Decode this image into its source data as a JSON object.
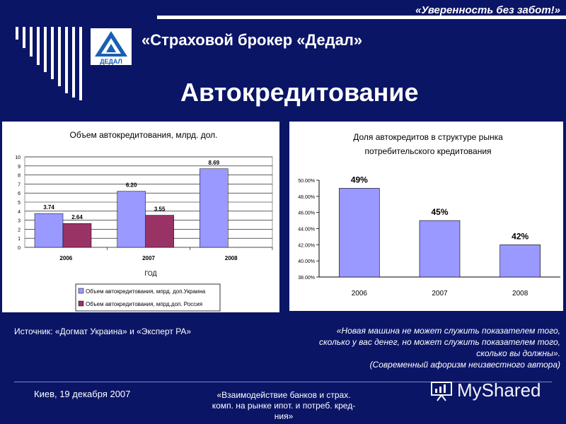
{
  "header": {
    "tagline": "«Уверенность без забот!»",
    "brand": "«Страховой брокер «Дедал»",
    "logo_text": "ДЕДАЛ"
  },
  "title": "Автокредитование",
  "chart_data": [
    {
      "type": "bar",
      "title": "Объем автокредитования, млрд. дол.",
      "categories": [
        "2006",
        "2007",
        "2008"
      ],
      "xlabel": "ГОД",
      "ylim": [
        0,
        10
      ],
      "yticks": [
        "0",
        "1",
        "2",
        "3",
        "4",
        "5",
        "6",
        "7",
        "8",
        "9",
        "10"
      ],
      "series": [
        {
          "name": "Объем автокредитования, мпрд. доп.Украина",
          "values": [
            3.74,
            6.2,
            8.69
          ],
          "labels": [
            "3.74",
            "6.20",
            "8.69"
          ],
          "color": "#9999ff"
        },
        {
          "name": "Объем автокредитования, мпрд.доп. Россия",
          "values": [
            2.64,
            3.55,
            null
          ],
          "labels": [
            "2.64",
            "3.55",
            ""
          ],
          "color": "#993366"
        }
      ],
      "legend": "bottom-right",
      "grid": true
    },
    {
      "type": "bar",
      "title": "Доля автокредитов в структуре рынка",
      "subtitle": "потребительского кредитования",
      "categories": [
        "2006",
        "2007",
        "2008"
      ],
      "ylim": [
        38,
        50
      ],
      "yticks": [
        "38.00%",
        "40.00%",
        "42.00%",
        "44.00%",
        "46.00%",
        "48.00%",
        "50.00%"
      ],
      "series": [
        {
          "values": [
            49,
            45,
            42
          ],
          "labels": [
            "49%",
            "45%",
            "42%"
          ],
          "color": "#9999ff"
        }
      ],
      "grid": false
    }
  ],
  "source": "Источник: «Догмат Украина» и «Эксперт РА»",
  "quote": {
    "line1": "«Новая машина не может служить показателем того,",
    "line2": "сколько у вас денег, но может служить показателем того,",
    "line3": "сколько вы должны».",
    "line4": "(Современный афоризм неизвестного автора)"
  },
  "footer": {
    "left": "Киев, 19 декабря 2007",
    "mid1": "«Взаимодействие банков и страх.",
    "mid2": "комп. на рынке ипот. и потреб. кред-",
    "mid3": "ния»"
  },
  "watermark": "MyShared"
}
